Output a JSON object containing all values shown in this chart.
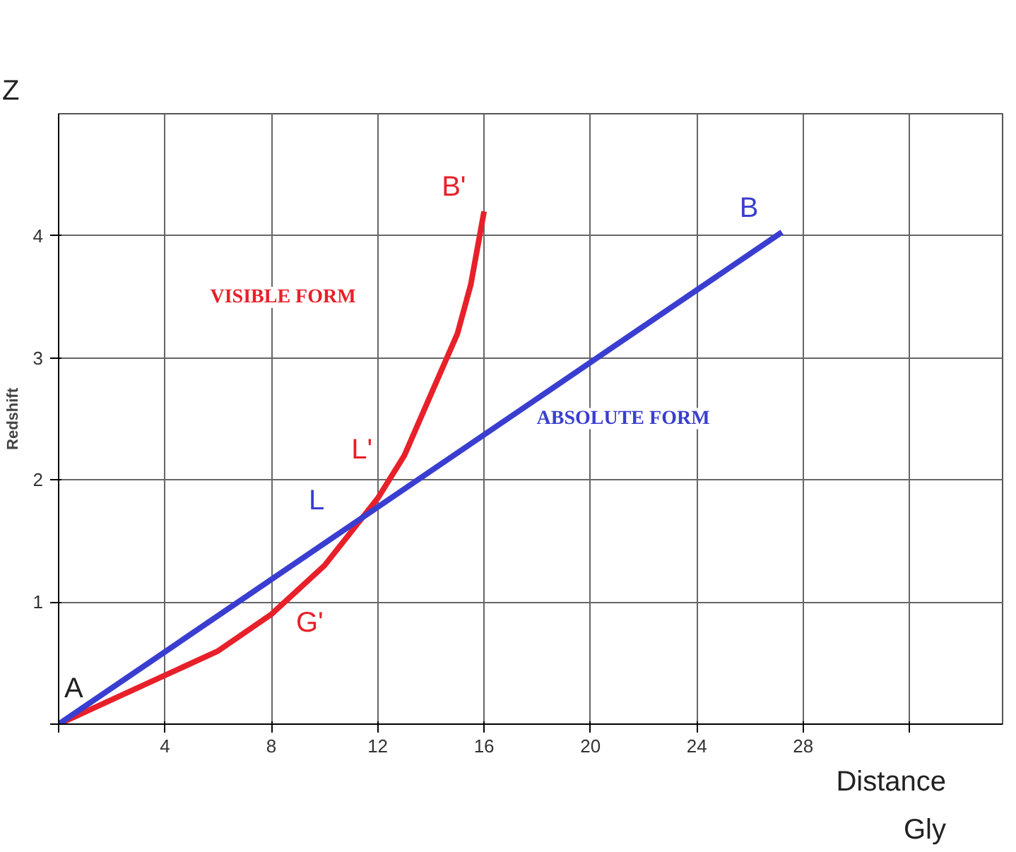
{
  "chart_data": {
    "type": "line",
    "ylabel": "Redshift",
    "xlabel": "Distance Gly",
    "xlim": [
      0,
      35.5
    ],
    "ylim": [
      0,
      5
    ],
    "xticks": [
      {
        "value": 0,
        "label": null
      },
      4,
      8,
      12,
      16,
      20,
      24,
      28,
      {
        "value": 32,
        "label": null
      }
    ],
    "yticks": [
      {
        "value": 0,
        "label": null
      },
      1,
      2,
      3,
      4
    ],
    "grid": true,
    "legend": false,
    "marker": "none",
    "line_style": "solid",
    "series": [
      {
        "name": "VISIBLE  FORM",
        "color": "#e8202a",
        "x": [
          0,
          2,
          4,
          6,
          8,
          10,
          12,
          13,
          14,
          15,
          15.5,
          16
        ],
        "values": [
          0,
          0.2,
          0.4,
          0.6,
          0.9,
          1.3,
          1.85,
          2.2,
          2.7,
          3.2,
          3.6,
          4.2
        ]
      },
      {
        "name": "ABSOLUTE FORM",
        "color": "#3a3ed0",
        "x": [
          0,
          27.2
        ],
        "values": [
          0,
          4.03
        ]
      }
    ],
    "annotations": [
      "Z",
      {
        "text": "A",
        "x": 0,
        "y": 0
      },
      {
        "text": "B",
        "x": 27.2,
        "y": 4.03
      },
      {
        "text": "B'",
        "x": 16,
        "y": 4.2
      },
      {
        "text": "L",
        "x": 11,
        "y": 1.63
      },
      {
        "text": "L'",
        "x": 12.6,
        "y": 2.05
      },
      {
        "text": "G'",
        "x": 8.5,
        "y": 1.0
      }
    ]
  }
}
